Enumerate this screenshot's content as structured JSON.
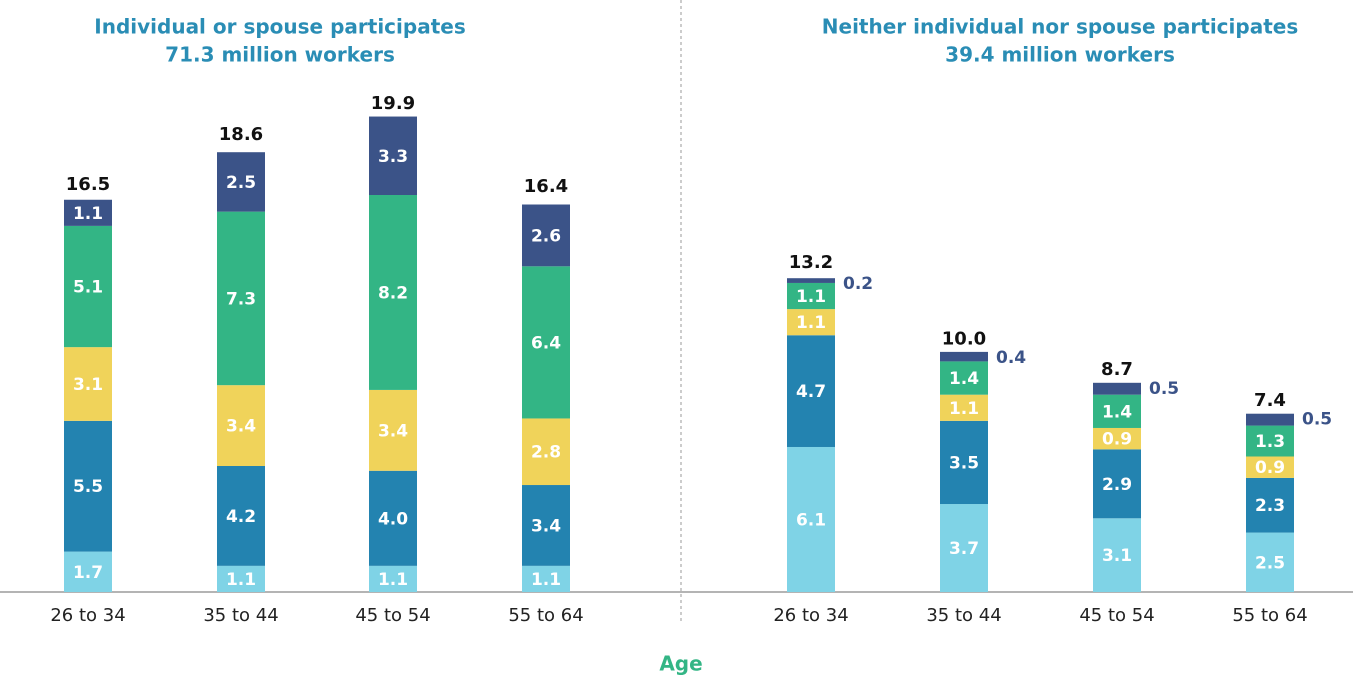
{
  "x_label": "Age",
  "chart_data": [
    {
      "type": "bar",
      "stacked": true,
      "title": "Individual or spouse participates",
      "subtitle": "71.3 million workers",
      "categories": [
        "26 to 34",
        "35 to 44",
        "45 to 54",
        "55 to 64"
      ],
      "ylim": [
        0,
        22
      ],
      "series": [
        {
          "color": "#7fd3e6",
          "values": [
            1.7,
            1.1,
            1.1,
            1.1
          ],
          "value_labels": [
            "1.7",
            "1.1",
            "1.1",
            "1.1"
          ]
        },
        {
          "color": "#2383b0",
          "values": [
            5.5,
            4.2,
            4.0,
            3.4
          ],
          "value_labels": [
            "5.5",
            "4.2",
            "4.0",
            "3.4"
          ]
        },
        {
          "color": "#f0d35a",
          "values": [
            3.1,
            3.4,
            3.4,
            2.8
          ],
          "value_labels": [
            "3.1",
            "3.4",
            "3.4",
            "2.8"
          ]
        },
        {
          "color": "#33b585",
          "values": [
            5.1,
            7.3,
            8.2,
            6.4
          ],
          "value_labels": [
            "5.1",
            "7.3",
            "8.2",
            "6.4"
          ]
        },
        {
          "color": "#3b5388",
          "values": [
            1.1,
            2.5,
            3.3,
            2.6
          ],
          "value_labels": [
            "1.1",
            "2.5",
            "3.3",
            "2.6"
          ]
        }
      ],
      "totals": [
        16.5,
        18.6,
        19.9,
        16.4
      ],
      "total_labels": [
        "16.5",
        "18.6",
        "19.9",
        "16.4"
      ]
    },
    {
      "type": "bar",
      "stacked": true,
      "title": "Neither individual nor spouse participates",
      "subtitle": "39.4 million workers",
      "categories": [
        "26 to 34",
        "35 to 44",
        "45 to 54",
        "55 to 64"
      ],
      "ylim": [
        0,
        22
      ],
      "series": [
        {
          "color": "#7fd3e6",
          "values": [
            6.1,
            3.7,
            3.1,
            2.5
          ],
          "value_labels": [
            "6.1",
            "3.7",
            "3.1",
            "2.5"
          ]
        },
        {
          "color": "#2383b0",
          "values": [
            4.7,
            3.5,
            2.9,
            2.3
          ],
          "value_labels": [
            "4.7",
            "3.5",
            "2.9",
            "2.3"
          ]
        },
        {
          "color": "#f0d35a",
          "values": [
            1.1,
            1.1,
            0.9,
            0.9
          ],
          "value_labels": [
            "1.1",
            "1.1",
            "0.9",
            "0.9"
          ]
        },
        {
          "color": "#33b585",
          "values": [
            1.1,
            1.4,
            1.4,
            1.3
          ],
          "value_labels": [
            "1.1",
            "1.4",
            "1.4",
            "1.3"
          ]
        },
        {
          "color": "#3b5388",
          "values": [
            0.2,
            0.4,
            0.5,
            0.5
          ],
          "value_labels": [
            "0.2",
            "0.4",
            "0.5",
            "0.5"
          ]
        }
      ],
      "totals": [
        13.2,
        10.0,
        8.7,
        7.4
      ],
      "total_labels": [
        "13.2",
        "10.0",
        "8.7",
        "7.4"
      ]
    }
  ]
}
